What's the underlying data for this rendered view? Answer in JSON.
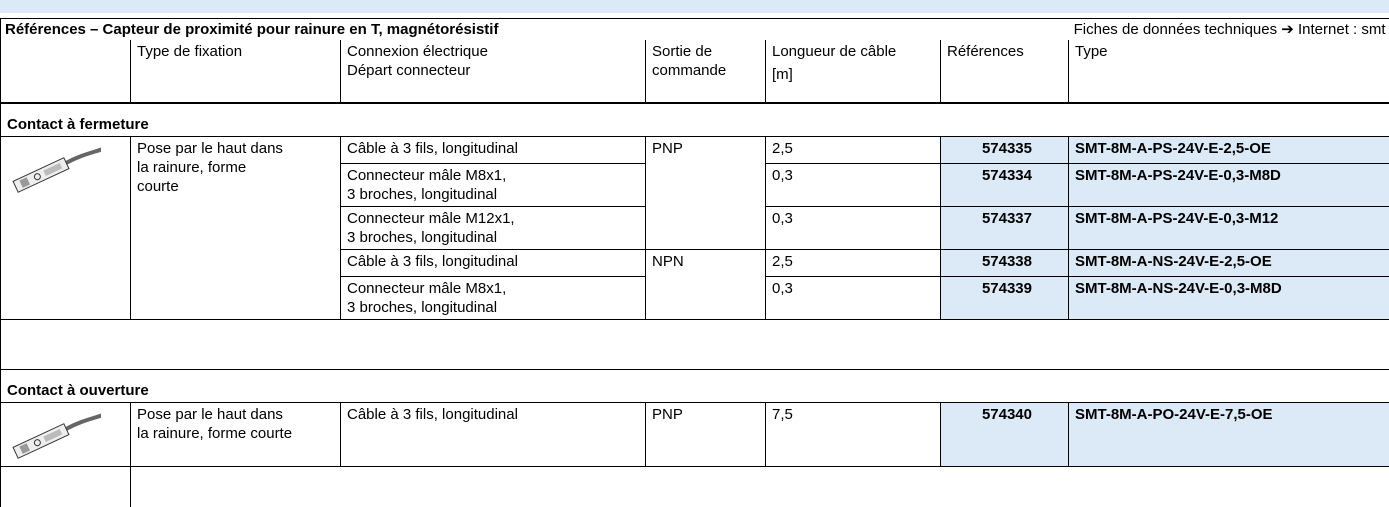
{
  "header": {
    "title": "Références – Capteur de proximité pour rainure en T, magnétorésistif",
    "link_text": "Fiches de données techniques ➔ Internet : smt"
  },
  "table": {
    "columns": [
      [
        "Type de fixation"
      ],
      [
        "Connexion électrique",
        "Départ connecteur"
      ],
      [
        "Sortie de",
        "commande"
      ],
      [
        "Longueur de câble",
        "[m]"
      ],
      [
        "Références"
      ],
      [
        "Type"
      ]
    ],
    "sections": [
      {
        "label": "Contact à fermeture",
        "fixation": [
          "Pose par le haut dans",
          "la rainure, forme",
          "courte"
        ],
        "rows": [
          {
            "connexion": [
              "Câble à 3 fils, longitudinal"
            ],
            "sortie": "PNP",
            "longueur": "2,5",
            "reference": "574335",
            "type": "SMT-8M-A-PS-24V-E-2,5-OE"
          },
          {
            "connexion": [
              "Connecteur mâle M8x1,",
              "3 broches, longitudinal"
            ],
            "longueur": "0,3",
            "reference": "574334",
            "type": "SMT-8M-A-PS-24V-E-0,3-M8D"
          },
          {
            "connexion": [
              "Connecteur mâle M12x1,",
              "3 broches, longitudinal"
            ],
            "longueur": "0,3",
            "reference": "574337",
            "type": "SMT-8M-A-PS-24V-E-0,3-M12"
          },
          {
            "connexion": [
              "Câble à 3 fils, longitudinal"
            ],
            "sortie": "NPN",
            "longueur": "2,5",
            "reference": "574338",
            "type": "SMT-8M-A-NS-24V-E-2,5-OE"
          },
          {
            "connexion": [
              "Connecteur mâle M8x1,",
              "3 broches, longitudinal"
            ],
            "longueur": "0,3",
            "reference": "574339",
            "type": "SMT-8M-A-NS-24V-E-0,3-M8D"
          }
        ]
      },
      {
        "label": "Contact à ouverture",
        "fixation": [
          "Pose par le haut dans",
          "la rainure, forme courte"
        ],
        "rows": [
          {
            "connexion": [
              "Câble à 3 fils, longitudinal"
            ],
            "sortie": "PNP",
            "longueur": "7,5",
            "reference": "574340",
            "type": "SMT-8M-A-PO-24V-E-7,5-OE"
          }
        ]
      }
    ]
  }
}
